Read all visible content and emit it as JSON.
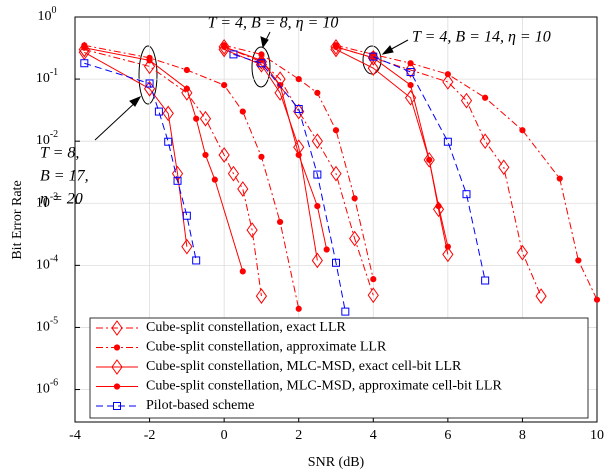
{
  "chart_data": {
    "type": "line",
    "xlabel": "SNR (dB)",
    "ylabel": "Bit Error Rate",
    "xlim": [
      -4,
      10
    ],
    "xticks": [
      -4,
      -2,
      0,
      2,
      4,
      6,
      8,
      10
    ],
    "ylim": [
      3e-07,
      1
    ],
    "ylog": true,
    "yticks": [
      {
        "value": 1,
        "label": "10",
        "exponent": "0"
      },
      {
        "value": 0.1,
        "label": "10",
        "exponent": "-1"
      },
      {
        "value": 0.01,
        "label": "10",
        "exponent": "-2"
      },
      {
        "value": 0.001,
        "label": "10",
        "exponent": "-3"
      },
      {
        "value": 0.0001,
        "label": "10",
        "exponent": "-4"
      },
      {
        "value": 1e-05,
        "label": "10",
        "exponent": "-5"
      },
      {
        "value": 1e-06,
        "label": "10",
        "exponent": "-6"
      }
    ],
    "grid": true,
    "legend": "lower left",
    "annotations": [
      "T = 4, B = 8, η = 10",
      "T = 4, B = 14, η = 10",
      "T = 8,",
      "B = 17,",
      "η = 20"
    ],
    "series": [
      {
        "name": "Cube-split constellation, exact LLR",
        "color": "#ff0000",
        "line": "dashdot",
        "marker": "diamond",
        "x": [
          -3.75,
          -2,
          -1,
          -0.5,
          0,
          0.25,
          0.5,
          0.75,
          1,
          null,
          0,
          1,
          1.5,
          2,
          2.5,
          3,
          3.5,
          4,
          null,
          3,
          4,
          5,
          6,
          6.5,
          7,
          7.5,
          8,
          8.5
        ],
        "values": [
          0.3,
          0.16,
          0.06,
          0.023,
          0.006,
          0.003,
          0.0017,
          0.00037,
          3.2e-05,
          null,
          0.33,
          0.19,
          0.1,
          0.03,
          0.01,
          0.003,
          0.00027,
          3.3e-05,
          null,
          0.33,
          0.22,
          0.14,
          0.09,
          0.045,
          0.01,
          0.0038,
          0.00016,
          3.2e-05
        ]
      },
      {
        "name": "Cube-split constellation, approximate LLR",
        "color": "#ff0000",
        "line": "dashdot",
        "marker": "dot",
        "x": [
          -3.75,
          -2,
          -1,
          0,
          0.5,
          1,
          1.5,
          2,
          null,
          0,
          1,
          2,
          2.5,
          3,
          3.5,
          4,
          null,
          3,
          4,
          5,
          6,
          7,
          8,
          9,
          9.5,
          10
        ],
        "values": [
          0.35,
          0.22,
          0.14,
          0.08,
          0.03,
          0.0056,
          0.0005,
          2e-05,
          null,
          0.35,
          0.25,
          0.1,
          0.06,
          0.015,
          0.0012,
          6e-05,
          null,
          0.35,
          0.25,
          0.18,
          0.12,
          0.05,
          0.015,
          0.0025,
          0.00012,
          2.8e-05
        ]
      },
      {
        "name": "Cube-split constellation, MLC-MSD, exact cell-bit LLR",
        "color": "#ff0000",
        "line": "solid",
        "marker": "diamond",
        "x": [
          -3.75,
          -2,
          -1.5,
          -1.25,
          -1,
          null,
          0,
          1,
          1.5,
          2,
          2.5,
          null,
          3,
          4,
          5,
          5.5,
          5.75,
          6
        ],
        "values": [
          0.27,
          0.07,
          0.028,
          0.003,
          0.0002,
          null,
          0.3,
          0.17,
          0.06,
          0.008,
          0.00012,
          null,
          0.3,
          0.15,
          0.05,
          0.005,
          0.0008,
          0.00015
        ]
      },
      {
        "name": "Cube-split constellation, MLC-MSD, approximate cell-bit LLR",
        "color": "#ff0000",
        "line": "solid",
        "marker": "dot",
        "x": [
          -3.75,
          -2,
          -1,
          -0.75,
          -0.5,
          -0.25,
          0.5,
          null,
          0,
          1,
          1.5,
          2,
          2.5,
          2.75,
          null,
          3,
          4,
          5,
          5.5,
          5.75,
          6
        ],
        "values": [
          0.32,
          0.2,
          0.07,
          0.023,
          0.006,
          0.0024,
          8e-05,
          null,
          0.33,
          0.2,
          0.08,
          0.006,
          0.0009,
          0.00018,
          null,
          0.33,
          0.22,
          0.08,
          0.005,
          0.0009,
          0.0002
        ]
      },
      {
        "name": "Pilot-based scheme",
        "color": "#0000ff",
        "line": "dashed",
        "marker": "square",
        "x": [
          -3.75,
          -2,
          -1.75,
          -1.5,
          -1.25,
          -1,
          -0.75,
          null,
          0.25,
          1,
          2,
          2.5,
          3,
          3.25,
          null,
          4,
          5,
          6,
          6.5,
          7
        ],
        "values": [
          0.18,
          0.085,
          0.03,
          0.0098,
          0.0023,
          0.00063,
          0.00012,
          null,
          0.25,
          0.18,
          0.033,
          0.0029,
          0.00011,
          1.8e-05,
          null,
          0.23,
          0.13,
          0.0098,
          0.0014,
          5.7e-05
        ]
      }
    ]
  }
}
